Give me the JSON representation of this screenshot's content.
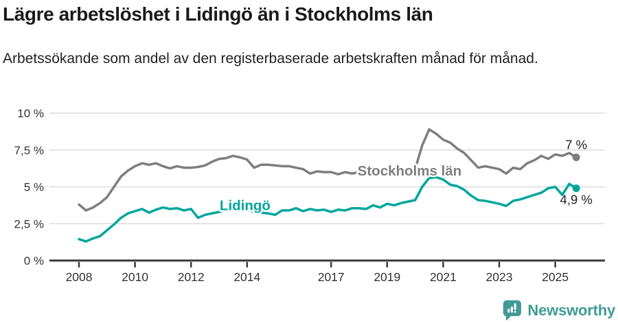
{
  "header": {
    "title": "Lägre arbetslöshet i Lidingö än i Stockholms län",
    "subtitle": "Arbetssökande som andel av den registerbaserade arbetskraften månad för månad."
  },
  "chart_data": {
    "type": "line",
    "title": "Lägre arbetslöshet i Lidingö än i Stockholms län",
    "subtitle": "Arbetssökande som andel av den registerbaserade arbetskraften månad för månad.",
    "x_unit": "decimal_year",
    "grid": "horizontal-only",
    "legend_position": "inline-labels",
    "x": [
      2008.0,
      2008.25,
      2008.5,
      2008.75,
      2009.0,
      2009.25,
      2009.5,
      2009.75,
      2010.0,
      2010.25,
      2010.5,
      2010.75,
      2011.0,
      2011.25,
      2011.5,
      2011.75,
      2012.0,
      2012.25,
      2012.5,
      2012.75,
      2013.0,
      2013.25,
      2013.5,
      2013.75,
      2014.0,
      2014.25,
      2014.5,
      2014.75,
      2015.0,
      2015.25,
      2015.5,
      2015.75,
      2016.0,
      2016.25,
      2016.5,
      2016.75,
      2017.0,
      2017.25,
      2017.5,
      2017.75,
      2018.0,
      2018.25,
      2018.5,
      2018.75,
      2019.0,
      2019.25,
      2019.5,
      2019.75,
      2020.0,
      2020.25,
      2020.5,
      2020.75,
      2021.0,
      2021.25,
      2021.5,
      2021.75,
      2022.0,
      2022.25,
      2022.5,
      2022.75,
      2023.0,
      2023.25,
      2023.5,
      2023.75,
      2024.0,
      2024.25,
      2024.5,
      2024.75,
      2025.0,
      2025.25,
      2025.5,
      2025.75
    ],
    "series": [
      {
        "name": "Stockholms län",
        "color": "#7e7e7e",
        "end_label": "7 %",
        "end_value": 7.0,
        "inline_label": {
          "x": 2019.8,
          "y": 6.09
        },
        "values": [
          3.8,
          3.4,
          3.6,
          3.9,
          4.3,
          5.0,
          5.7,
          6.1,
          6.4,
          6.6,
          6.5,
          6.6,
          6.4,
          6.25,
          6.4,
          6.3,
          6.3,
          6.35,
          6.45,
          6.7,
          6.9,
          6.95,
          7.1,
          7.0,
          6.85,
          6.3,
          6.5,
          6.5,
          6.45,
          6.4,
          6.4,
          6.3,
          6.2,
          5.9,
          6.05,
          6.0,
          6.0,
          5.85,
          6.0,
          5.9,
          6.0,
          5.9,
          6.0,
          5.95,
          6.05,
          6.0,
          6.05,
          6.1,
          6.2,
          7.8,
          8.9,
          8.6,
          8.2,
          8.0,
          7.6,
          7.3,
          6.8,
          6.3,
          6.4,
          6.3,
          6.2,
          5.9,
          6.3,
          6.2,
          6.6,
          6.8,
          7.1,
          6.9,
          7.2,
          7.1,
          7.3,
          7.0
        ]
      },
      {
        "name": "Lidingö",
        "color": "#00a69c",
        "end_label": "4,9 %",
        "end_value": 4.9,
        "inline_label": {
          "x": 2013.93,
          "y": 3.74
        },
        "values": [
          1.45,
          1.3,
          1.5,
          1.65,
          2.05,
          2.45,
          2.9,
          3.2,
          3.35,
          3.5,
          3.25,
          3.45,
          3.6,
          3.5,
          3.55,
          3.4,
          3.5,
          2.9,
          3.1,
          3.2,
          3.3,
          3.45,
          3.55,
          3.4,
          3.45,
          3.3,
          3.25,
          3.2,
          3.1,
          3.4,
          3.4,
          3.55,
          3.35,
          3.5,
          3.4,
          3.45,
          3.3,
          3.45,
          3.4,
          3.55,
          3.55,
          3.5,
          3.75,
          3.6,
          3.85,
          3.75,
          3.9,
          4.0,
          4.1,
          5.0,
          5.6,
          5.65,
          5.5,
          5.15,
          5.05,
          4.8,
          4.4,
          4.1,
          4.05,
          3.95,
          3.85,
          3.7,
          4.05,
          4.15,
          4.3,
          4.45,
          4.6,
          4.9,
          5.0,
          4.45,
          5.2,
          4.9
        ]
      }
    ],
    "y_axis": {
      "range": [
        0,
        10
      ],
      "ticks": [
        {
          "value": 0,
          "label": "0 %"
        },
        {
          "value": 2.5,
          "label": "2,5 %"
        },
        {
          "value": 5,
          "label": "5 %"
        },
        {
          "value": 7.5,
          "label": "7,5 %"
        },
        {
          "value": 10,
          "label": "10 %"
        }
      ]
    },
    "x_axis": {
      "range": [
        2006.9,
        2026.8
      ],
      "ticks": [
        {
          "value": 2008,
          "label": "2008"
        },
        {
          "value": 2010,
          "label": "2010"
        },
        {
          "value": 2012,
          "label": "2012"
        },
        {
          "value": 2014,
          "label": "2014"
        },
        {
          "value": 2017,
          "label": "2017"
        },
        {
          "value": 2019,
          "label": "2019"
        },
        {
          "value": 2021,
          "label": "2021"
        },
        {
          "value": 2023,
          "label": "2023"
        },
        {
          "value": 2025,
          "label": "2025"
        }
      ]
    },
    "colors": {
      "grid": "#dcdcdc",
      "axis": "#3a3a3a",
      "tick_text": "#333333",
      "end_label_text": "#222222"
    }
  },
  "footer": {
    "brand": "Newsworthy",
    "brand_color": "#3f9b94",
    "icon": "speech-bubble-bar-chart-icon"
  }
}
